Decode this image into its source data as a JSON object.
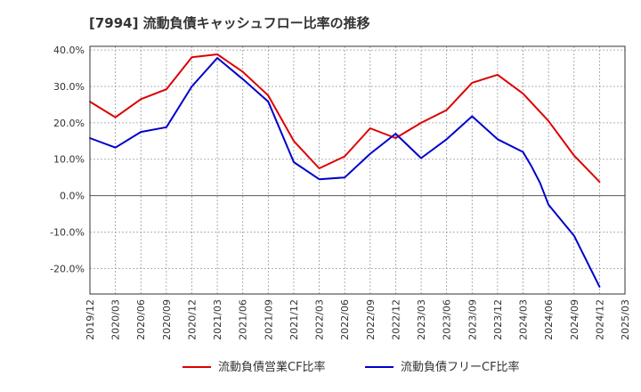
{
  "chart_data": {
    "type": "line",
    "title": "[7994]  流動負債キャッシュフロー比率の推移",
    "xlabel": "",
    "ylabel": "",
    "x_ticks": [
      "2019/12",
      "2020/03",
      "2020/06",
      "2020/09",
      "2020/12",
      "2021/03",
      "2021/06",
      "2021/09",
      "2021/12",
      "2022/03",
      "2022/06",
      "2022/09",
      "2022/12",
      "2023/03",
      "2023/06",
      "2023/09",
      "2023/12",
      "2024/03",
      "2024/06",
      "2024/09",
      "2024/12",
      "2025/03"
    ],
    "y_ticks": [
      "-20.0%",
      "-10.0%",
      "0.0%",
      "10.0%",
      "20.0%",
      "30.0%",
      "40.0%"
    ],
    "ylim": [
      -27,
      41
    ],
    "y_unit": "%",
    "grid": true,
    "legend_position": "bottom",
    "series": [
      {
        "name": "流動負債営業CF比率",
        "color": "#dd0000",
        "points": [
          [
            "2019/12",
            25.8
          ],
          [
            "2020/03",
            21.5
          ],
          [
            "2020/06",
            26.5
          ],
          [
            "2020/09",
            29.2
          ],
          [
            "2020/12",
            38.0
          ],
          [
            "2021/03",
            38.8
          ],
          [
            "2021/06",
            34.0
          ],
          [
            "2021/09",
            27.5
          ],
          [
            "2021/12",
            15.0
          ],
          [
            "2022/03",
            7.5
          ],
          [
            "2022/06",
            10.8
          ],
          [
            "2022/09",
            18.5
          ],
          [
            "2022/12",
            15.8
          ],
          [
            "2023/03",
            20.0
          ],
          [
            "2023/06",
            23.5
          ],
          [
            "2023/09",
            31.0
          ],
          [
            "2023/12",
            33.2
          ],
          [
            "2024/03",
            28.0
          ],
          [
            "2024/06",
            20.5
          ],
          [
            "2024/09",
            11.0
          ],
          [
            "2024/12",
            3.8
          ]
        ]
      },
      {
        "name": "流動負債フリーCF比率",
        "color": "#0000cc",
        "points": [
          [
            "2019/12",
            15.8
          ],
          [
            "2020/03",
            13.2
          ],
          [
            "2020/06",
            17.5
          ],
          [
            "2020/09",
            18.8
          ],
          [
            "2020/12",
            30.0
          ],
          [
            "2021/03",
            37.8
          ],
          [
            "2021/06",
            32.0
          ],
          [
            "2021/09",
            25.8
          ],
          [
            "2021/12",
            9.2
          ],
          [
            "2022/03",
            4.5
          ],
          [
            "2022/06",
            5.0
          ],
          [
            "2022/09",
            11.5
          ],
          [
            "2022/12",
            17.0
          ],
          [
            "2023/03",
            10.3
          ],
          [
            "2023/06",
            15.5
          ],
          [
            "2023/09",
            21.8
          ],
          [
            "2023/12",
            15.5
          ],
          [
            "2024/03",
            12.0
          ],
          [
            "2024/04",
            8.0
          ],
          [
            "2024/05",
            3.5
          ],
          [
            "2024/06",
            -2.5
          ],
          [
            "2024/09",
            -11.0
          ],
          [
            "2024/12",
            -25.0
          ]
        ]
      }
    ]
  }
}
